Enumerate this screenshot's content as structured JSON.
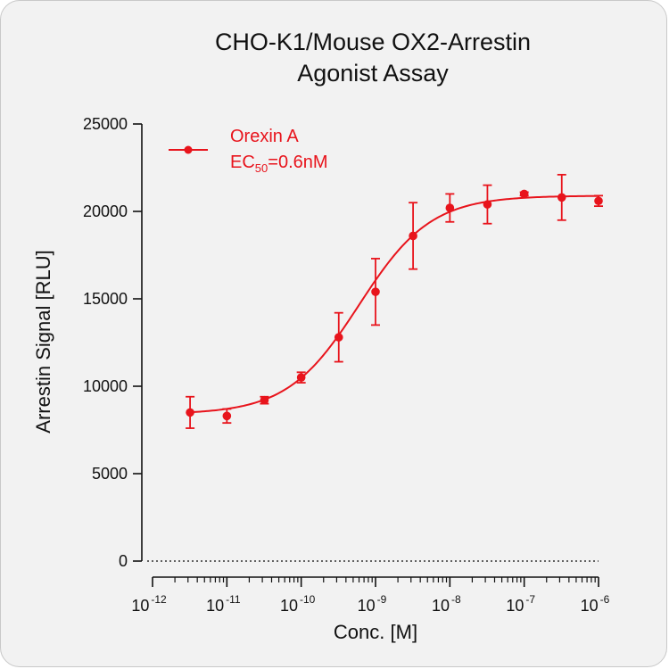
{
  "chart_data": {
    "type": "scatter",
    "title_lines": [
      "CHO-K1/Mouse OX2-Arrestin",
      "Agonist Assay"
    ],
    "xlabel": "Conc. [M]",
    "ylabel": "Arrestin Signal [RLU]",
    "xscale": "log",
    "xlim": [
      1e-12,
      1e-06
    ],
    "ylim": [
      0,
      25000
    ],
    "yticks": [
      0,
      5000,
      10000,
      15000,
      20000,
      25000
    ],
    "ytick_labels": [
      "0",
      "5000",
      "10000",
      "15000",
      "20000",
      "25000"
    ],
    "xtick_base": "10",
    "xtick_exponents": [
      "-12",
      "-11",
      "-10",
      "-9",
      "-8",
      "-7",
      "-6"
    ],
    "baseline": "dotted line at y=0",
    "legend_position": "top-left",
    "colors": {
      "series": "#e8141c"
    },
    "series": [
      {
        "name": "Orexin A",
        "ec50_label_main": "EC",
        "ec50_label_sub": "50",
        "ec50_label_rest": "=0.6nM",
        "points": [
          {
            "x": 3.2e-12,
            "y": 8500,
            "err": 900
          },
          {
            "x": 1e-11,
            "y": 8300,
            "err": 400
          },
          {
            "x": 3.2e-11,
            "y": 9200,
            "err": 200
          },
          {
            "x": 1e-10,
            "y": 10500,
            "err": 300
          },
          {
            "x": 3.2e-10,
            "y": 12800,
            "err": 1400
          },
          {
            "x": 1e-09,
            "y": 15400,
            "err": 1900
          },
          {
            "x": 3.2e-09,
            "y": 18600,
            "err": 1900
          },
          {
            "x": 1e-08,
            "y": 20200,
            "err": 800
          },
          {
            "x": 3.2e-08,
            "y": 20400,
            "err": 1100
          },
          {
            "x": 1e-07,
            "y": 21000,
            "err": 100
          },
          {
            "x": 3.2e-07,
            "y": 20800,
            "err": 1300
          },
          {
            "x": 1e-06,
            "y": 20600,
            "err": 300
          }
        ],
        "fit": {
          "bottom": 8400,
          "top": 20900,
          "ec50": 6e-10,
          "hill": 0.9
        }
      }
    ]
  }
}
